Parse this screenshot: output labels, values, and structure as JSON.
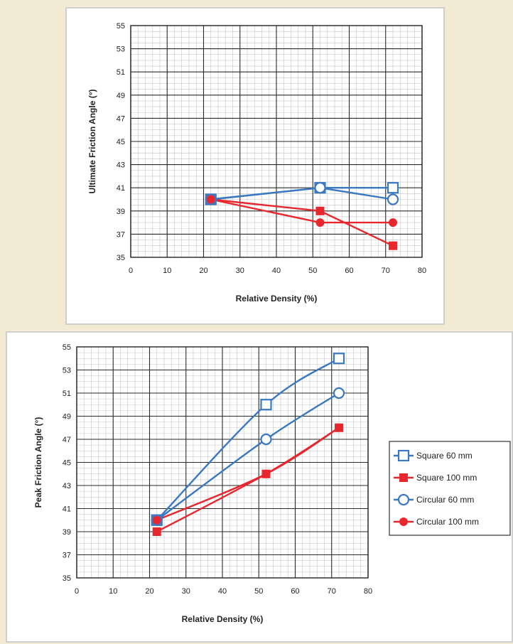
{
  "chart_data": [
    {
      "type": "line",
      "title": "",
      "xlabel": "Relative Density (%)",
      "ylabel": "Ultimate Friction Angle (°)",
      "xlim": [
        0,
        80
      ],
      "ylim": [
        35,
        55
      ],
      "xticks": [
        "0",
        "10",
        "20",
        "30",
        "40",
        "50",
        "60",
        "70",
        "80"
      ],
      "yticks": [
        "35",
        "37",
        "39",
        "41",
        "43",
        "45",
        "47",
        "49",
        "51",
        "53",
        "55"
      ],
      "grid": true,
      "legend": false,
      "series": [
        {
          "name": "Square 60 mm",
          "color": "#3a78c2",
          "marker": "square-open",
          "x": [
            22,
            52,
            72
          ],
          "y": [
            40,
            41,
            41
          ]
        },
        {
          "name": "Square 100 mm",
          "color": "#e8262e",
          "marker": "square-filled",
          "x": [
            22,
            52,
            72
          ],
          "y": [
            40,
            39,
            36
          ]
        },
        {
          "name": "Circular 60 mm",
          "color": "#3a78c2",
          "marker": "circle-open",
          "x": [
            22,
            52,
            72
          ],
          "y": [
            40,
            41,
            40
          ]
        },
        {
          "name": "Circular 100 mm",
          "color": "#e8262e",
          "marker": "circle-filled",
          "x": [
            22,
            52,
            72
          ],
          "y": [
            40,
            38,
            38
          ]
        }
      ]
    },
    {
      "type": "line",
      "title": "",
      "xlabel": "Relative Density (%)",
      "ylabel": "Peak Friction Angle (°)",
      "xlim": [
        0,
        80
      ],
      "ylim": [
        35,
        55
      ],
      "xticks": [
        "0",
        "10",
        "20",
        "30",
        "40",
        "50",
        "60",
        "70",
        "80"
      ],
      "yticks": [
        "35",
        "37",
        "39",
        "41",
        "43",
        "45",
        "47",
        "49",
        "51",
        "53",
        "55"
      ],
      "grid": true,
      "legend": true,
      "legend_position": "right",
      "series": [
        {
          "name": "Square 60 mm",
          "color": "#3a78c2",
          "marker": "square-open",
          "x": [
            22,
            52,
            72
          ],
          "y": [
            40,
            50,
            54
          ]
        },
        {
          "name": "Square 100 mm",
          "color": "#e8262e",
          "marker": "square-filled",
          "x": [
            22,
            52,
            72
          ],
          "y": [
            39,
            44,
            48
          ]
        },
        {
          "name": "Circular 60 mm",
          "color": "#3a78c2",
          "marker": "circle-open",
          "x": [
            22,
            52,
            72
          ],
          "y": [
            40,
            47,
            51
          ]
        },
        {
          "name": "Circular 100 mm",
          "color": "#e8262e",
          "marker": "circle-filled",
          "x": [
            22,
            52,
            72
          ],
          "y": [
            40,
            44,
            48
          ]
        }
      ]
    }
  ]
}
